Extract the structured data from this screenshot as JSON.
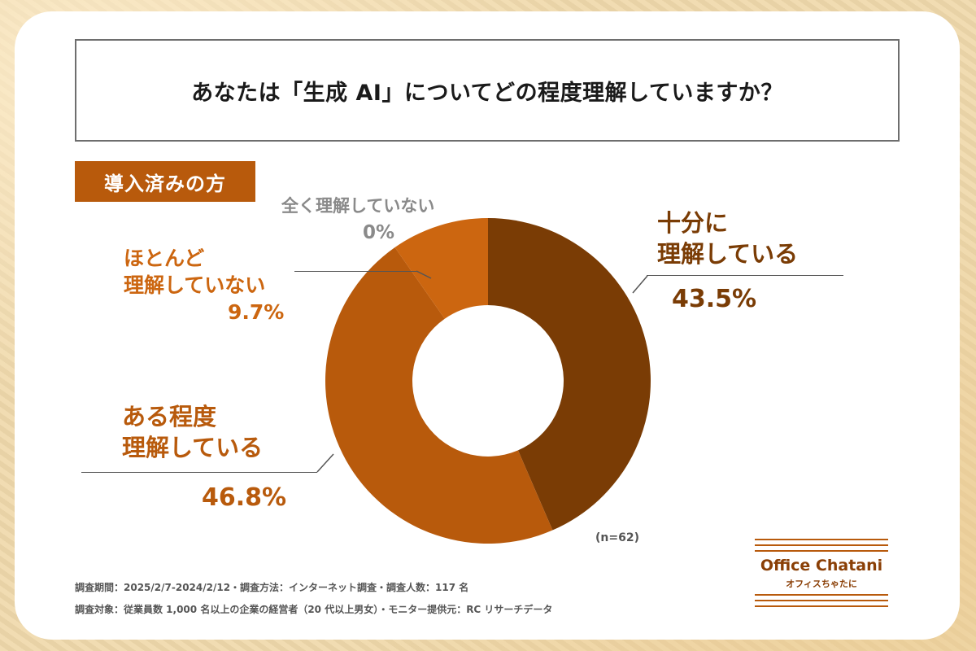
{
  "title": "あなたは「生成 AI」についてどの程度理解していますか？",
  "segment_tag": "導入済みの方",
  "colors": {
    "dark": "#7a3c05",
    "mid": "#b85a0c",
    "light": "#cc6610",
    "grey": "#8a8a8a"
  },
  "labels": {
    "fully_line1": "十分に",
    "fully_line2": "理解している",
    "fully_pct": "43.5%",
    "somewhat_line1": "ある程度",
    "somewhat_line2": "理解している",
    "somewhat_pct": "46.8%",
    "hardly_line1": "ほとんど",
    "hardly_line2": "理解していない",
    "hardly_pct": "9.7%",
    "none_line1": "全く理解していない",
    "none_pct": "0%"
  },
  "sample_size": "(n=62)",
  "notes": {
    "line1": "調査期間：2025/2/7-2024/2/12・調査方法：インターネット調査・調査人数：117 名",
    "line2": "調査対象：従業員数 1,000 名以上の企業の経営者（20 代以上男女）・モニター提供元：RC リサーチデータ"
  },
  "logo": {
    "name": "Office Chatani",
    "kana": "オフィスちゃたに"
  },
  "chart_data": {
    "type": "pie",
    "donut": true,
    "title": "あなたは「生成 AI」についてどの程度理解していますか？",
    "subtitle": "導入済みの方",
    "categories": [
      "十分に理解している",
      "ある程度理解している",
      "ほとんど理解していない",
      "全く理解していない"
    ],
    "values": [
      43.5,
      46.8,
      9.7,
      0
    ],
    "unit": "%",
    "n": 62,
    "slice_colors": [
      "#7a3c05",
      "#b85a0c",
      "#cc6610",
      "#e08a2c"
    ],
    "direction": "clockwise from top"
  }
}
